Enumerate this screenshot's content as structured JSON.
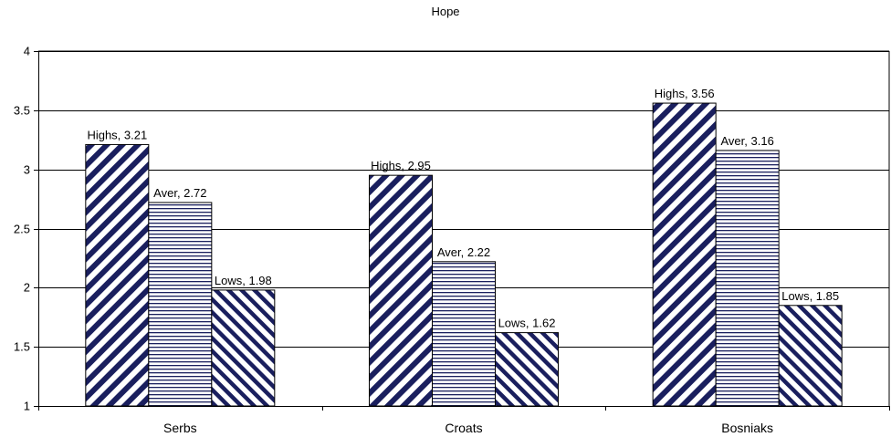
{
  "chart_data": {
    "type": "bar",
    "title": "Hope",
    "xlabel": "",
    "ylabel": "",
    "categories": [
      "Serbs",
      "Croats",
      "Bosniaks"
    ],
    "series": [
      {
        "name": "Highs",
        "values": [
          3.21,
          2.95,
          3.56
        ],
        "pattern": "diagonal-back"
      },
      {
        "name": "Aver",
        "values": [
          2.72,
          2.22,
          3.16
        ],
        "pattern": "horizontal"
      },
      {
        "name": "Lows",
        "values": [
          1.98,
          1.62,
          1.85
        ],
        "pattern": "diagonal-forward"
      }
    ],
    "data_labels": [
      [
        "Highs, 3.21",
        "Aver, 2.72",
        "Lows, 1.98"
      ],
      [
        "Highs, 2.95",
        "Aver, 2.22",
        "Lows, 1.62"
      ],
      [
        "Highs, 3.56",
        "Aver, 3.16",
        "Lows, 1.85"
      ]
    ],
    "ylim": [
      1,
      4
    ],
    "yticks": [
      1,
      1.5,
      2,
      2.5,
      3,
      3.5,
      4
    ],
    "ytick_labels": [
      "1",
      "1.5",
      "2",
      "2.5",
      "3",
      "3.5",
      "4"
    ],
    "grid": true,
    "legend": "none",
    "colors": {
      "pattern": "#1a1f5e",
      "background": "#ffffff",
      "grid": "#000000"
    }
  }
}
